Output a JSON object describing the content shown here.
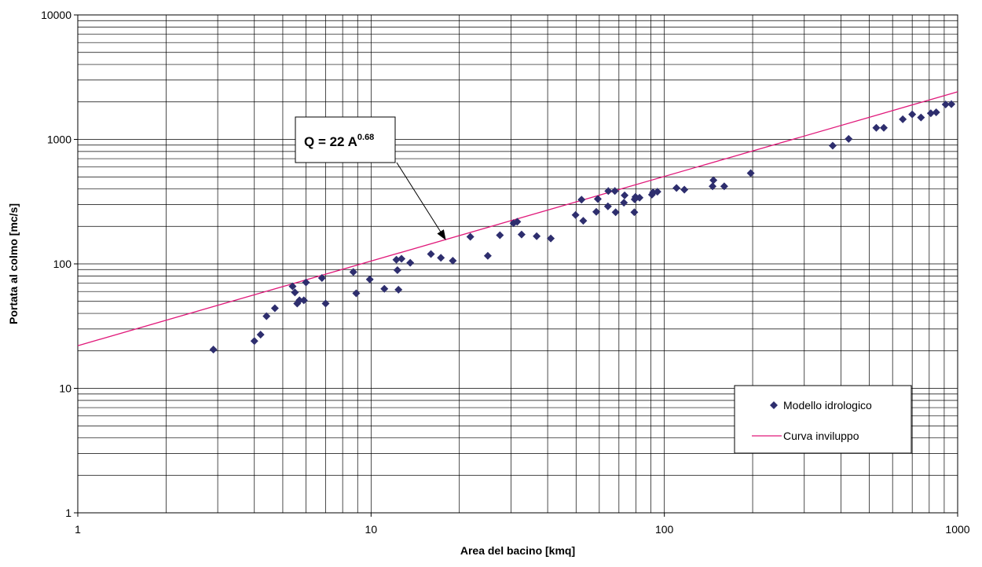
{
  "chart_data": {
    "type": "scatter",
    "title": "",
    "xlabel": "Area del bacino [kmq]",
    "ylabel": "Portata al colmo [mc/s]",
    "xscale": "log",
    "yscale": "log",
    "xlim": [
      1,
      1000
    ],
    "ylim": [
      1,
      10000
    ],
    "x_tick_labels": [
      "1",
      "10",
      "100",
      "1000"
    ],
    "y_tick_labels": [
      "1",
      "10",
      "100",
      "1000",
      "10000"
    ],
    "grid": true,
    "legend_position": "bottom-right",
    "series": [
      {
        "name": "Modello idrologico",
        "kind": "scatter",
        "marker": "diamond",
        "color": "#2e2e6e",
        "points": [
          [
            2.9,
            20.5
          ],
          [
            4.0,
            24
          ],
          [
            4.2,
            27
          ],
          [
            4.4,
            38
          ],
          [
            4.7,
            44
          ],
          [
            5.4,
            66
          ],
          [
            5.5,
            59
          ],
          [
            5.6,
            48
          ],
          [
            5.7,
            51
          ],
          [
            5.9,
            51
          ],
          [
            6.0,
            71
          ],
          [
            6.8,
            77
          ],
          [
            7.0,
            48
          ],
          [
            8.7,
            86
          ],
          [
            8.9,
            58
          ],
          [
            9.9,
            75
          ],
          [
            11.1,
            63
          ],
          [
            12.2,
            108
          ],
          [
            12.3,
            89
          ],
          [
            12.4,
            62
          ],
          [
            12.7,
            110
          ],
          [
            13.6,
            102
          ],
          [
            16.0,
            120
          ],
          [
            17.3,
            112
          ],
          [
            19.0,
            106
          ],
          [
            21.8,
            165
          ],
          [
            25.0,
            116
          ],
          [
            27.5,
            170
          ],
          [
            30.6,
            212
          ],
          [
            31.5,
            218
          ],
          [
            32.6,
            172
          ],
          [
            36.7,
            167
          ],
          [
            41.0,
            160
          ],
          [
            49.8,
            247
          ],
          [
            52.2,
            328
          ],
          [
            52.9,
            222
          ],
          [
            58.6,
            262
          ],
          [
            59.3,
            332
          ],
          [
            64.2,
            290
          ],
          [
            64.4,
            385
          ],
          [
            67.8,
            385
          ],
          [
            68.2,
            260
          ],
          [
            72.8,
            310
          ],
          [
            73.2,
            355
          ],
          [
            79.0,
            260
          ],
          [
            79.2,
            330
          ],
          [
            79.7,
            345
          ],
          [
            82.3,
            340
          ],
          [
            90.7,
            360
          ],
          [
            91.5,
            375
          ],
          [
            94.7,
            380
          ],
          [
            110,
            407
          ],
          [
            117,
            395
          ],
          [
            146,
            420
          ],
          [
            147,
            470
          ],
          [
            160,
            420
          ],
          [
            197,
            535
          ],
          [
            375,
            890
          ],
          [
            425,
            1010
          ],
          [
            528,
            1240
          ],
          [
            560,
            1240
          ],
          [
            650,
            1450
          ],
          [
            700,
            1590
          ],
          [
            750,
            1500
          ],
          [
            810,
            1620
          ],
          [
            845,
            1650
          ],
          [
            910,
            1910
          ],
          [
            952,
            1920
          ]
        ]
      },
      {
        "name": "Curva inviluppo",
        "kind": "line",
        "color": "#e0197a",
        "coefficient": 22,
        "exponent": 0.68
      }
    ],
    "annotations": [
      {
        "base": "Q = 22 A",
        "superscript": "0.68",
        "points_to": [
          18,
          155
        ]
      }
    ]
  }
}
